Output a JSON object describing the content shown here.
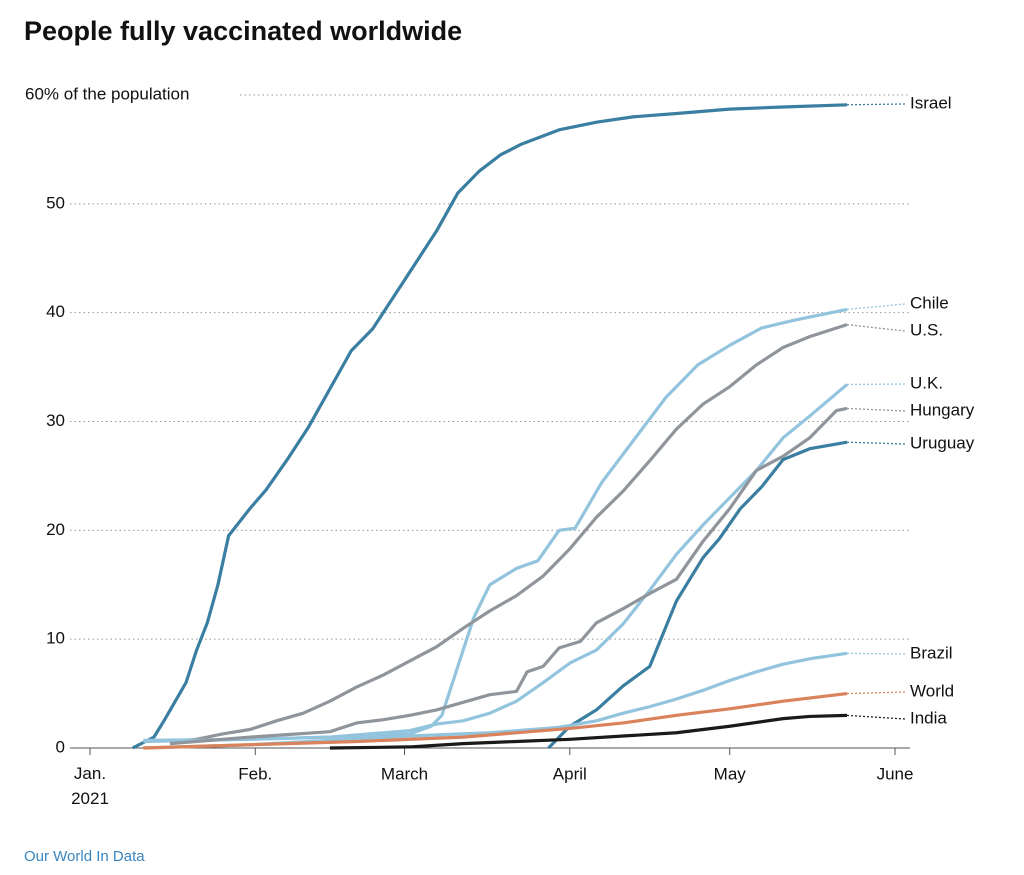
{
  "chart_data": {
    "type": "line",
    "title": "People fully vaccinated worldwide",
    "source": "Our World In Data",
    "xlim": [
      0,
      151
    ],
    "xticks": [
      {
        "value": 0,
        "label": "Jan. 2021"
      },
      {
        "value": 31,
        "label": "Feb."
      },
      {
        "value": 59,
        "label": "March"
      },
      {
        "value": 90,
        "label": "April"
      },
      {
        "value": 120,
        "label": "May"
      },
      {
        "value": 151,
        "label": "June"
      }
    ],
    "ylim": [
      0,
      60
    ],
    "yticks": [
      0,
      10,
      20,
      30,
      40,
      50,
      {
        "value": 60,
        "label": "60% of the population"
      }
    ],
    "grid": true,
    "series": [
      {
        "name": "Israel",
        "color": "#3a7ea1",
        "x": [
          8,
          12,
          14,
          18,
          20,
          22,
          24,
          26,
          30,
          33,
          37,
          41,
          45,
          49,
          53,
          57,
          61,
          65,
          69,
          73,
          77,
          81,
          88,
          95,
          102,
          110,
          120,
          130,
          142
        ],
        "values": [
          0,
          1,
          2.6,
          6,
          9,
          11.5,
          15,
          19.5,
          22,
          23.7,
          26.5,
          29.5,
          33,
          36.5,
          38.5,
          41.5,
          44.5,
          47.5,
          51,
          53,
          54.5,
          55.5,
          56.8,
          57.5,
          58,
          58.3,
          58.7,
          58.9,
          59.1
        ]
      },
      {
        "name": "Chile",
        "color": "#93c4de",
        "x": [
          10,
          30,
          45,
          60,
          64,
          66,
          68,
          70,
          72,
          75,
          80,
          84,
          88,
          91,
          96,
          102,
          108,
          114,
          120,
          126,
          132,
          142
        ],
        "values": [
          0.7,
          0.8,
          1,
          1.3,
          2,
          3,
          6,
          9,
          12,
          15,
          16.5,
          17.2,
          20,
          20.2,
          24.4,
          28.3,
          32.2,
          35.2,
          37,
          38.6,
          39.3,
          40.3
        ]
      },
      {
        "name": "U.S.",
        "color": "#8f959b",
        "x": [
          15,
          20,
          25,
          30,
          35,
          40,
          45,
          50,
          55,
          60,
          65,
          70,
          75,
          80,
          85,
          90,
          95,
          100,
          105,
          110,
          115,
          120,
          125,
          130,
          135,
          142
        ],
        "values": [
          0.5,
          0.8,
          1.3,
          1.7,
          2.5,
          3.2,
          4.3,
          5.6,
          6.7,
          8,
          9.3,
          11,
          12.6,
          14,
          15.8,
          18.3,
          21.2,
          23.6,
          26.4,
          29.3,
          31.6,
          33.2,
          35.2,
          36.8,
          37.8,
          38.9
        ]
      },
      {
        "name": "U.K.",
        "color": "#93c4de",
        "x": [
          10,
          30,
          45,
          60,
          65,
          70,
          75,
          80,
          85,
          90,
          95,
          100,
          105,
          110,
          115,
          120,
          125,
          130,
          135,
          142
        ],
        "values": [
          0.6,
          0.8,
          1,
          1.6,
          2.2,
          2.5,
          3.2,
          4.3,
          6,
          7.8,
          9,
          11.4,
          14.5,
          17.8,
          20.5,
          23,
          25.5,
          28.5,
          30.5,
          33.4
        ]
      },
      {
        "name": "Hungary",
        "color": "#8f959b",
        "x": [
          15,
          30,
          45,
          50,
          55,
          60,
          65,
          70,
          75,
          80,
          82,
          85,
          88,
          92,
          95,
          100,
          105,
          110,
          115,
          120,
          125,
          130,
          135,
          140,
          142
        ],
        "values": [
          0.4,
          1,
          1.5,
          2.3,
          2.6,
          3,
          3.5,
          4.2,
          4.9,
          5.2,
          7,
          7.5,
          9.2,
          9.8,
          11.5,
          12.8,
          14.2,
          15.5,
          19,
          22,
          25.5,
          26.8,
          28.5,
          31,
          31.2
        ]
      },
      {
        "name": "Uruguay",
        "color": "#3a7ea1",
        "x": [
          86,
          90,
          95,
          100,
          105,
          110,
          115,
          118,
          122,
          126,
          130,
          135,
          142
        ],
        "values": [
          0,
          2,
          3.5,
          5.7,
          7.5,
          13.5,
          17.5,
          19.2,
          22,
          24,
          26.5,
          27.5,
          28.1
        ]
      },
      {
        "name": "Brazil",
        "color": "#93c4de",
        "x": [
          10,
          30,
          60,
          75,
          88,
          95,
          100,
          105,
          110,
          115,
          120,
          125,
          130,
          135,
          142
        ],
        "values": [
          0,
          0.3,
          1.1,
          1.4,
          1.9,
          2.5,
          3.2,
          3.8,
          4.5,
          5.3,
          6.2,
          7,
          7.7,
          8.2,
          8.7
        ]
      },
      {
        "name": "World",
        "color": "#d9825b",
        "x": [
          10,
          30,
          50,
          70,
          90,
          100,
          110,
          120,
          130,
          142
        ],
        "values": [
          0,
          0.3,
          0.6,
          1,
          1.8,
          2.3,
          3,
          3.6,
          4.3,
          5
        ]
      },
      {
        "name": "India",
        "color": "#1a1a1a",
        "x": [
          45,
          60,
          70,
          80,
          90,
          100,
          110,
          120,
          130,
          135,
          142
        ],
        "values": [
          0,
          0.1,
          0.4,
          0.6,
          0.8,
          1.1,
          1.4,
          2,
          2.7,
          2.9,
          3
        ]
      }
    ]
  }
}
